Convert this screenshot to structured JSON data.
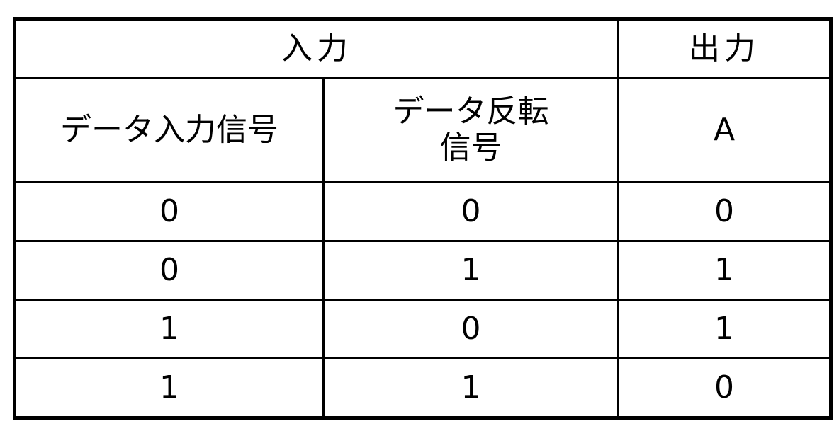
{
  "table": {
    "group_headers": [
      "入力",
      "出力"
    ],
    "column_headers": [
      "データ入力信号",
      "データ反転\n信号",
      "A"
    ],
    "column_headers_lines": [
      [
        "データ入力信号"
      ],
      [
        "データ反転",
        "信号"
      ],
      [
        "A"
      ]
    ],
    "rows": [
      [
        "0",
        "0",
        "0"
      ],
      [
        "0",
        "1",
        "1"
      ],
      [
        "1",
        "0",
        "1"
      ],
      [
        "1",
        "1",
        "0"
      ]
    ]
  }
}
